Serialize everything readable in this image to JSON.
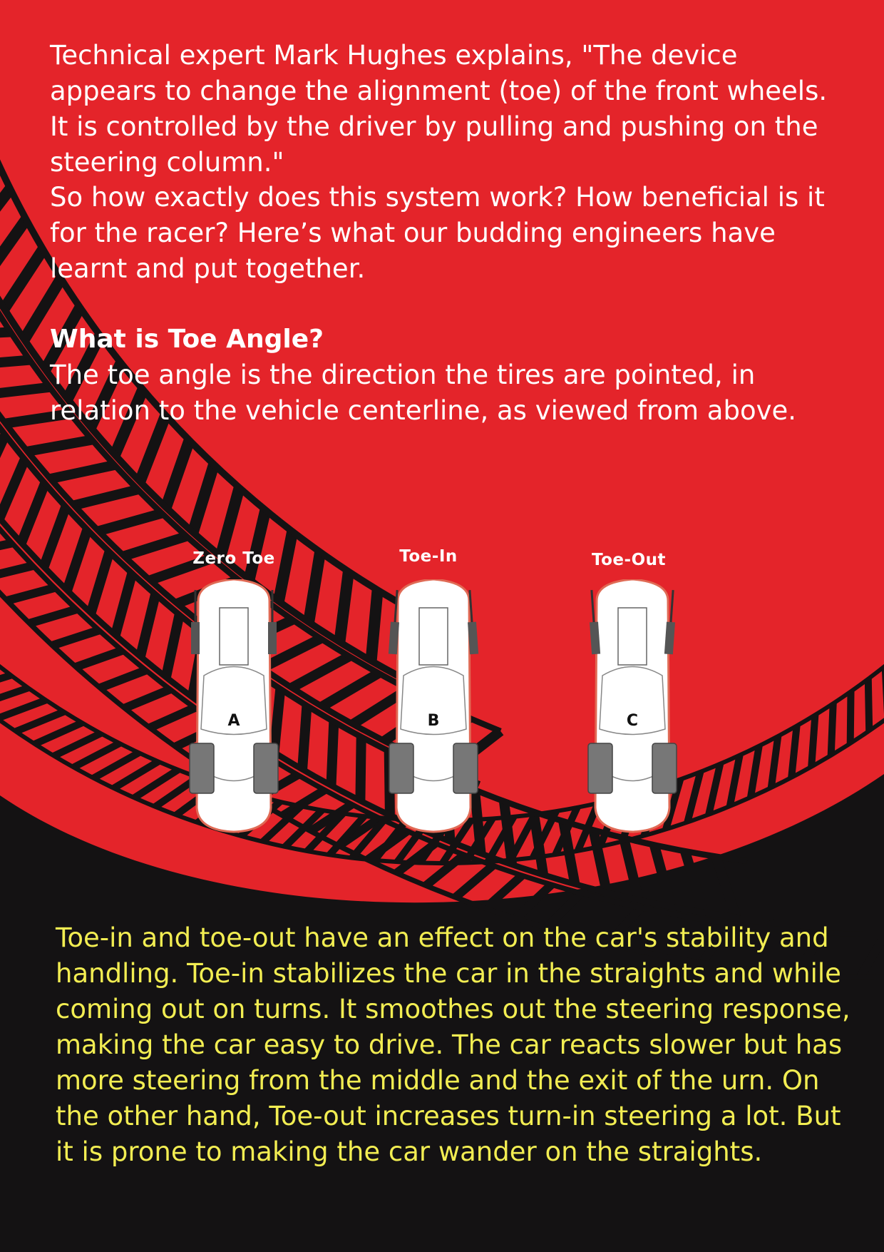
{
  "article": {
    "paragraph_1": "Technical expert Mark Hughes explains, \"The device appears to change the alignment (toe) of the front wheels. It is controlled by the driver by pulling and pushing on the steering column.\"",
    "paragraph_2": "So how exactly does this system work? How beneficial is it for the racer? Here’s what our budding engineers have learnt and put together.",
    "heading": "What is Toe Angle?",
    "paragraph_3": "The toe angle is the direction the tires are pointed, in relation to the vehicle centerline, as viewed from above.",
    "paragraph_4": "Toe-in and toe-out have an effect on the car's stability and handling. Toe-in stabilizes the car in the straights and while coming out on turns. It smoothes out the steering response, making the car easy to drive. The car reacts slower but has more steering from the middle and the exit of the  urn. On the other hand, Toe-out increases turn-in steering a lot. But it is prone to making the car wander on the straights."
  },
  "diagram": {
    "cars": [
      {
        "title": "Zero Toe",
        "letter": "A"
      },
      {
        "title": "Toe-In",
        "letter": "B"
      },
      {
        "title": "Toe-Out",
        "letter": "C"
      }
    ]
  },
  "colors": {
    "background_red": "#e4242a",
    "dark": "#141213",
    "body_text": "#ffffff",
    "lower_text": "#f2ed52"
  }
}
